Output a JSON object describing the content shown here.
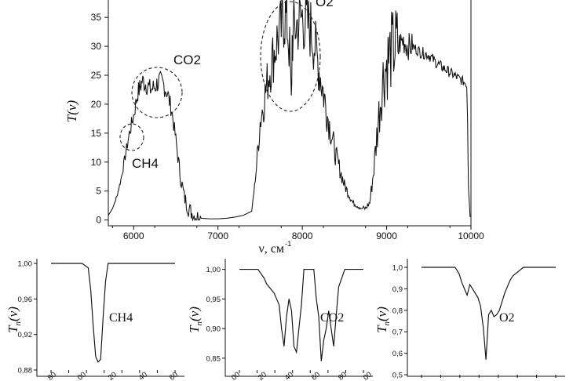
{
  "chart_data": [
    {
      "type": "line",
      "title": "",
      "xlabel": "ν, см",
      "xlabel_sup": "-1",
      "ylabel": "T(ν)",
      "xlim": [
        5700,
        10000
      ],
      "ylim": [
        -1,
        38
      ],
      "xticks": [
        6000,
        7000,
        8000,
        9000,
        10000
      ],
      "yticks": [
        0,
        5,
        10,
        15,
        20,
        25,
        30,
        35
      ],
      "grid": false,
      "series": [
        {
          "x": [
            5700,
            5750,
            5800,
            5850,
            5900,
            5950,
            6000,
            6050,
            6080,
            6100,
            6150,
            6200,
            6250,
            6300,
            6350,
            6400,
            6450,
            6500,
            6550,
            6600,
            6650,
            6700,
            6750,
            6800,
            6900,
            7000,
            7100,
            7200,
            7300,
            7400,
            7420,
            7450,
            7500,
            7550,
            7600,
            7650,
            7700,
            7750,
            7780,
            7800,
            7820,
            7850,
            7870,
            7880,
            7900,
            7950,
            8000,
            8050,
            8100,
            8150,
            8200,
            8300,
            8400,
            8500,
            8600,
            8700,
            8750,
            8800,
            8850,
            8900,
            8950,
            9000,
            9050,
            9100,
            9150,
            9200,
            9250,
            9300,
            9350,
            9400,
            9500,
            9600,
            9700,
            9800,
            9900,
            9950,
            9960,
            9970,
            9990
          ],
          "y": [
            0.8,
            2,
            4,
            7,
            11,
            15,
            18,
            22,
            23,
            24,
            23.5,
            22.5,
            23,
            24,
            23.5,
            22,
            19,
            14,
            8,
            4,
            2,
            1,
            0.5,
            0.3,
            0.2,
            0.2,
            0.3,
            0.5,
            0.8,
            1.5,
            4,
            8,
            17,
            21,
            25,
            28,
            31,
            33,
            35,
            35,
            34,
            29,
            20,
            31,
            33,
            34,
            35,
            34,
            33,
            30,
            26,
            18,
            11,
            6,
            3,
            2,
            2,
            3,
            9,
            17,
            24,
            27,
            29,
            30,
            30.5,
            31,
            30,
            30,
            29.5,
            29,
            28.5,
            27,
            26,
            25,
            24,
            23.5,
            18,
            6,
            0.5
          ]
        }
      ],
      "annotations": [
        {
          "text": "CH4"
        },
        {
          "text": "CO2"
        },
        {
          "text": "O2"
        }
      ]
    },
    {
      "type": "line",
      "ylabel": "Tn(ν)",
      "label": "CH4",
      "ylim": [
        0.88,
        1.0
      ],
      "yticks": [
        "0,88",
        "0,92",
        "0,96",
        "1,00"
      ],
      "xticklabels_partial": [
        "80",
        "00",
        "20",
        "40",
        "60"
      ],
      "series": [
        {
          "x": [
            0,
            10,
            20,
            25,
            30,
            32,
            34,
            36,
            38,
            40,
            42,
            44,
            46,
            50,
            60,
            80,
            100
          ],
          "y": [
            1.0,
            1.0,
            1.0,
            1.0,
            0.995,
            0.97,
            0.93,
            0.895,
            0.889,
            0.892,
            0.94,
            0.98,
            1.0,
            1.0,
            1.0,
            1.0,
            1.0
          ]
        }
      ]
    },
    {
      "type": "line",
      "ylabel": "Tn(ν)",
      "label": "CO2",
      "ylim": [
        0.83,
        1.01
      ],
      "yticks": [
        "0,85",
        "0,90",
        "0,95",
        "1,00"
      ],
      "xticklabels_partial": [
        "00",
        "20",
        "40",
        "60",
        "80",
        "00"
      ],
      "series": [
        {
          "x": [
            0,
            10,
            15,
            20,
            22,
            24,
            26,
            28,
            30,
            32,
            34,
            36,
            38,
            40,
            42,
            44,
            46,
            48,
            50,
            52,
            54,
            56,
            58,
            60,
            62,
            64,
            66,
            68,
            70,
            72,
            74,
            76,
            78,
            80,
            85,
            100
          ],
          "y": [
            1.0,
            1.0,
            1.0,
            0.985,
            0.975,
            0.97,
            0.965,
            0.96,
            0.95,
            0.94,
            0.9,
            0.87,
            0.92,
            0.95,
            0.93,
            0.87,
            0.86,
            0.9,
            0.94,
            1.0,
            1.0,
            1.0,
            1.0,
            1.0,
            0.95,
            0.92,
            0.845,
            0.88,
            0.9,
            0.93,
            0.9,
            0.87,
            0.92,
            0.97,
            1.0,
            1.0
          ]
        }
      ]
    },
    {
      "type": "line",
      "ylabel": "Tn(ν)",
      "label": "O2",
      "ylim": [
        0.5,
        1.0
      ],
      "yticks": [
        "0,5",
        "0,6",
        "0,7",
        "0,8",
        "0,9",
        "1,0"
      ],
      "xticklabels_partial": [],
      "series": [
        {
          "x": [
            0,
            10,
            20,
            25,
            28,
            30,
            32,
            34,
            36,
            38,
            40,
            42,
            44,
            46,
            48,
            50,
            52,
            54,
            56,
            58,
            60,
            62,
            64,
            66,
            68,
            70,
            72,
            74,
            76,
            78,
            80,
            85,
            100
          ],
          "y": [
            1.0,
            1.0,
            1.0,
            1.0,
            0.97,
            0.93,
            0.9,
            0.87,
            0.92,
            0.9,
            0.88,
            0.86,
            0.82,
            0.72,
            0.57,
            0.78,
            0.8,
            0.77,
            0.78,
            0.8,
            0.84,
            0.88,
            0.91,
            0.94,
            0.96,
            0.97,
            0.98,
            0.99,
            1.0,
            1.0,
            1.0,
            1.0,
            1.0
          ]
        }
      ]
    }
  ]
}
